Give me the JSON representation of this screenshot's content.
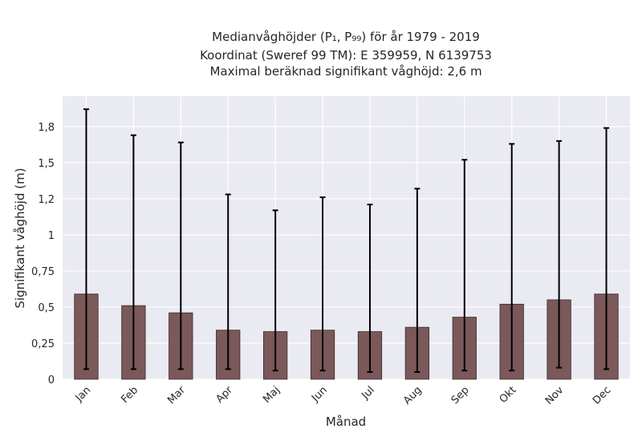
{
  "chart_data": {
    "type": "bar",
    "title": [
      "Medianvåghöjder (P₁, P₉₉) för år 1979 - 2019",
      "Koordinat (Sweref 99 TM): E 359959, N 6139753",
      "Maximal beräknad signifikant våghöjd: 2,6 m"
    ],
    "xlabel": "Månad",
    "ylabel": "Signifikant våghöjd (m)",
    "categories": [
      "Jan",
      "Feb",
      "Mar",
      "Apr",
      "Maj",
      "Jun",
      "Jul",
      "Aug",
      "Sep",
      "Okt",
      "Nov",
      "Dec"
    ],
    "values": [
      0.59,
      0.51,
      0.46,
      0.34,
      0.33,
      0.34,
      0.33,
      0.36,
      0.43,
      0.52,
      0.55,
      0.59
    ],
    "p1": [
      0.07,
      0.07,
      0.07,
      0.07,
      0.06,
      0.06,
      0.05,
      0.05,
      0.06,
      0.06,
      0.08,
      0.07
    ],
    "p99": [
      1.87,
      1.69,
      1.64,
      1.28,
      1.17,
      1.26,
      1.21,
      1.32,
      1.52,
      1.63,
      1.65,
      1.74
    ],
    "ylim": [
      0,
      1.96
    ],
    "yticks": [
      0,
      0.25,
      0.5,
      0.75,
      1,
      1.25,
      1.5,
      1.75
    ],
    "ytick_labels": [
      "0",
      "0,25",
      "0,5",
      "0,75",
      "1",
      "1,2",
      "1,5",
      "1,8"
    ],
    "grid": true,
    "colors": {
      "bar": "#7b5859",
      "bar_edge": "#3a2a2a",
      "error": "#000000",
      "plot_bg": "#eaeaf2",
      "grid": "#ffffff"
    }
  }
}
